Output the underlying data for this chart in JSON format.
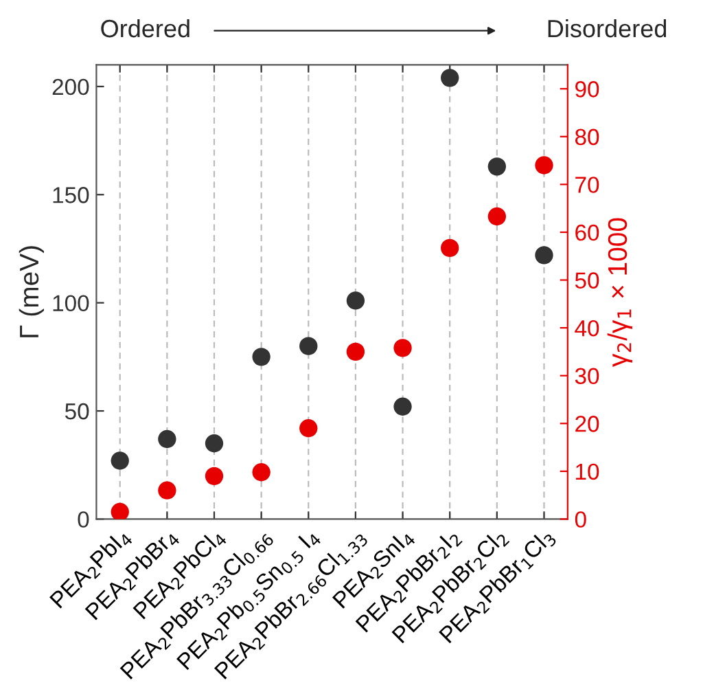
{
  "chart_data": {
    "type": "scatter",
    "annotations": [
      "Ordered",
      "Disordered"
    ],
    "ylabel": "Γ (meV)",
    "y2label": "γ$_{2}$/γ$_{1}$ × 1000",
    "categories": [
      "PEA$_{2}$PbI$_{4}$",
      "PEA$_{2}$PbBr$_{4}$",
      "PEA$_{2}$PbCl$_{4}$",
      "PEA$_{2}$PbBr$_{3.33}$Cl$_{0.66}$",
      "PEA$_{2}$Pb$_{0.5}$Sn$_{0.5}$ I$_{4}$",
      "PEA$_{2}$PbBr$_{2.66}$Cl$_{1.33}$",
      "PEA$_{2}$SnI$_{4}$",
      "PEA$_{2}$PbBr$_{2}$I$_{2}$",
      "PEA$_{2}$PbBr$_{2}$Cl$_{2}$",
      "PEA$_{2}$PbBr$_{1}$Cl$_{3}$"
    ],
    "series": [
      {
        "color": "#333333",
        "values": [
          27,
          37,
          35,
          75,
          80,
          101,
          52,
          204,
          163,
          122
        ]
      },
      {
        "color": "#e60000",
        "axis": "y2",
        "values": [
          1.5,
          6,
          9,
          9.8,
          19,
          35,
          35.8,
          56.7,
          63.3,
          74
        ]
      }
    ],
    "ylim": [
      0,
      210
    ],
    "yticks": [
      0,
      50,
      100,
      150,
      200
    ],
    "y2lim": [
      0,
      95
    ],
    "y2ticks": [
      0,
      10,
      20,
      30,
      40,
      50,
      60,
      70,
      80,
      90
    ],
    "grid": "x",
    "marker": "circle"
  }
}
